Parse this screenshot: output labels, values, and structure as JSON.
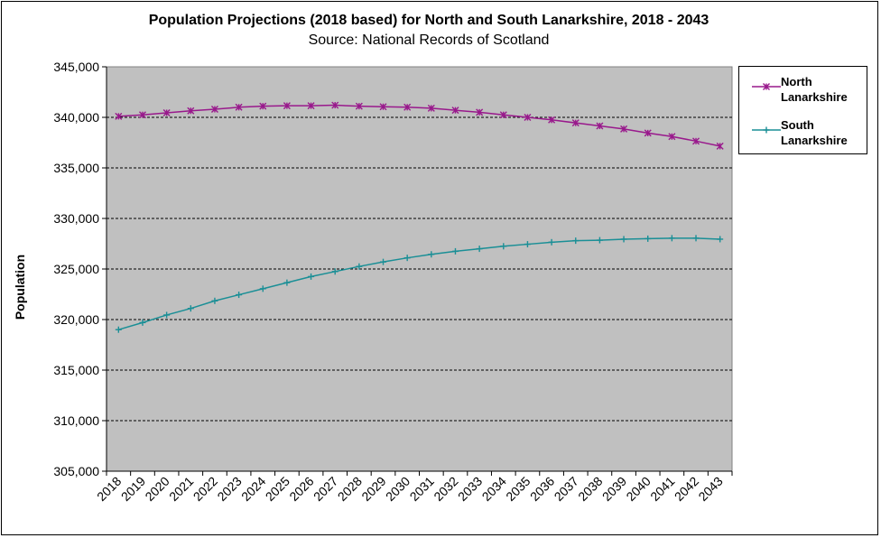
{
  "chart_data": {
    "type": "line",
    "title": "Population Projections (2018 based) for North and South Lanarkshire, 2018 - 2043",
    "subtitle": "Source: National Records of Scotland",
    "xlabel": "",
    "ylabel": "Population",
    "ylim": [
      305000,
      345000
    ],
    "yticks": [
      "305,000",
      "310,000",
      "315,000",
      "320,000",
      "325,000",
      "330,000",
      "335,000",
      "340,000",
      "345,000"
    ],
    "ytick_values": [
      305000,
      310000,
      315000,
      320000,
      325000,
      330000,
      335000,
      340000,
      345000
    ],
    "categories": [
      "2018",
      "2019",
      "2020",
      "2021",
      "2022",
      "2023",
      "2024",
      "2025",
      "2026",
      "2027",
      "2028",
      "2029",
      "2030",
      "2031",
      "2032",
      "2033",
      "2034",
      "2035",
      "2036",
      "2037",
      "2038",
      "2039",
      "2040",
      "2041",
      "2042",
      "2043"
    ],
    "grid": "horizontal dashed",
    "legend_position": "right",
    "series": [
      {
        "name": "North Lanarkshire",
        "line1": "North",
        "line2": "Lanarkshire",
        "color": "#99198C",
        "marker": "star",
        "values": [
          340100,
          340250,
          340450,
          340650,
          340800,
          341000,
          341100,
          341150,
          341150,
          341200,
          341100,
          341050,
          341000,
          340900,
          340700,
          340500,
          340250,
          340000,
          339750,
          339450,
          339150,
          338850,
          338450,
          338100,
          337650,
          337150
        ]
      },
      {
        "name": "South Lanarkshire",
        "line1": "South",
        "line2": "Lanarkshire",
        "color": "#1A8F96",
        "marker": "plus",
        "values": [
          319000,
          319700,
          320450,
          321100,
          321850,
          322450,
          323050,
          323650,
          324250,
          324750,
          325250,
          325700,
          326100,
          326450,
          326750,
          327000,
          327250,
          327450,
          327650,
          327800,
          327850,
          327950,
          328000,
          328050,
          328050,
          327950
        ]
      }
    ],
    "plot_background": "#C0C0C0"
  }
}
